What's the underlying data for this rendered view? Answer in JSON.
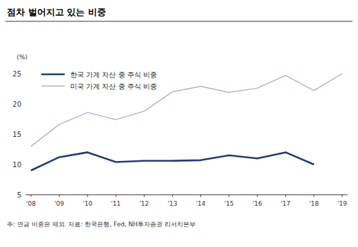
{
  "chart_data": {
    "type": "line",
    "title": "점차 벌어지고 있는 비중",
    "y_label": "(%)",
    "note": "주: 연금 비중은 제외. 자료: 한국은행, Fed, NH투자증권 리서치본부",
    "categories": [
      "'08",
      "'09",
      "'10",
      "'11",
      "'12",
      "'13",
      "'14",
      "'15",
      "'16",
      "'17",
      "'18",
      "'19"
    ],
    "series": [
      {
        "name": "한국 가계 자산 중 주식 비중",
        "color": "#1f3a7a",
        "values": [
          9,
          11.2,
          12,
          10.4,
          10.6,
          10.6,
          10.7,
          11.5,
          11,
          12,
          10,
          null
        ]
      },
      {
        "name": "미국 가계 자산 중 주식 비중",
        "color": "#a9b3cf",
        "values": [
          13,
          16.6,
          18.6,
          17.4,
          18.8,
          22,
          22.9,
          21.9,
          22.6,
          24.7,
          22.2,
          25
        ]
      }
    ],
    "ylim": [
      5,
      25
    ],
    "yticks": [
      5,
      10,
      15,
      20,
      25
    ],
    "grid": false,
    "legend": "top-left"
  }
}
